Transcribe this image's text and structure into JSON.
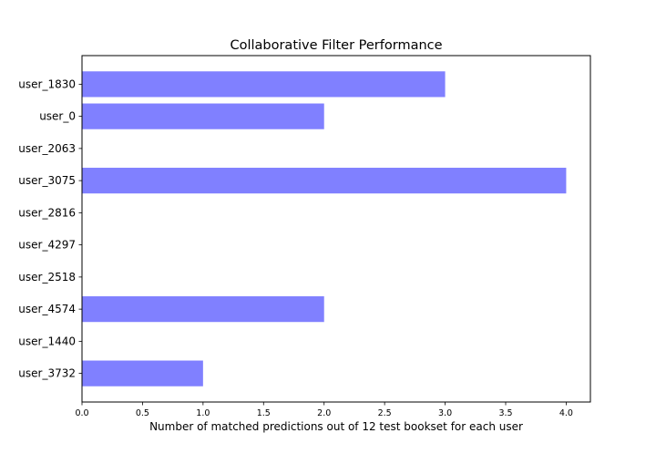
{
  "chart_data": {
    "type": "bar",
    "orientation": "horizontal",
    "title": "Collaborative Filter Performance",
    "xlabel": "Number of matched predictions out of 12 test bookset for each user",
    "ylabel": "",
    "categories": [
      "user_1830",
      "user_0",
      "user_2063",
      "user_3075",
      "user_2816",
      "user_4297",
      "user_2518",
      "user_4574",
      "user_1440",
      "user_3732"
    ],
    "values": [
      3,
      2,
      0,
      4,
      0,
      0,
      0,
      2,
      0,
      1
    ],
    "xlim": [
      0,
      4.2
    ],
    "xticks": [
      "0.0",
      "0.5",
      "1.0",
      "1.5",
      "2.0",
      "2.5",
      "3.0",
      "3.5",
      "4.0"
    ],
    "grid": false,
    "bar_color": "#8080ff"
  }
}
